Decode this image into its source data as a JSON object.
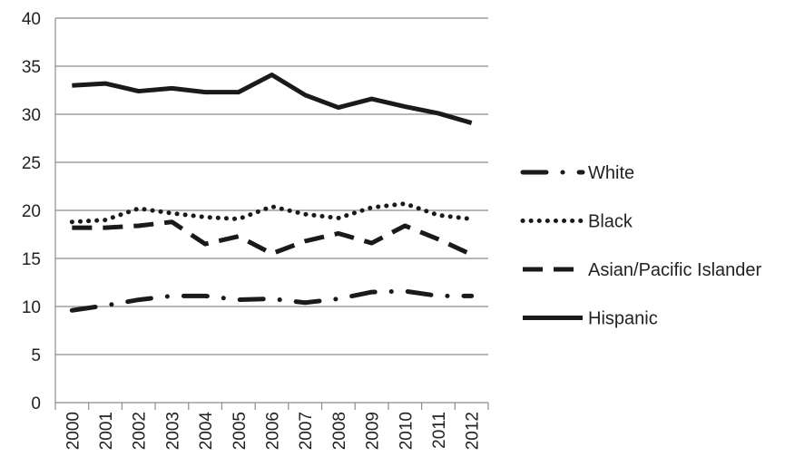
{
  "chart_data": {
    "type": "line",
    "title": "",
    "xlabel": "",
    "ylabel": "",
    "x": [
      "2000",
      "2001",
      "2002",
      "2003",
      "2004",
      "2005",
      "2006",
      "2007",
      "2008",
      "2009",
      "2010",
      "2011",
      "2012"
    ],
    "ylim": [
      0,
      40
    ],
    "yticks": [
      0,
      5,
      10,
      15,
      20,
      25,
      30,
      35,
      40
    ],
    "grid": "horizontal",
    "legend_position": "right",
    "series": [
      {
        "name": "White",
        "style": "dash-dot",
        "color": "#1a1a1a",
        "values": [
          9.6,
          10.1,
          10.7,
          11.1,
          11.1,
          10.7,
          10.8,
          10.4,
          10.8,
          11.5,
          11.6,
          11.1,
          11.1
        ]
      },
      {
        "name": "Black",
        "style": "dotted",
        "color": "#1a1a1a",
        "values": [
          18.8,
          19.0,
          20.2,
          19.7,
          19.3,
          19.1,
          20.4,
          19.6,
          19.2,
          20.3,
          20.7,
          19.5,
          19.1
        ]
      },
      {
        "name": "Asian/Pacific Islander",
        "style": "dashed",
        "color": "#1a1a1a",
        "values": [
          18.2,
          18.2,
          18.4,
          18.8,
          16.5,
          17.3,
          15.5,
          16.8,
          17.6,
          16.6,
          18.4,
          17.0,
          15.4
        ]
      },
      {
        "name": "Hispanic",
        "style": "solid",
        "color": "#1a1a1a",
        "values": [
          33.0,
          33.2,
          32.4,
          32.7,
          32.3,
          32.3,
          34.1,
          32.0,
          30.7,
          31.6,
          30.8,
          30.1,
          29.1
        ]
      }
    ]
  }
}
